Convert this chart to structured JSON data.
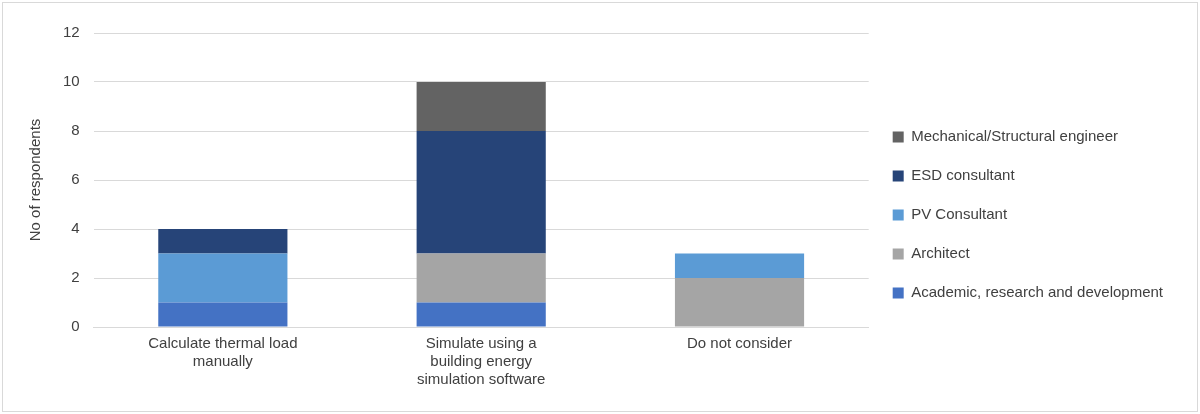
{
  "chart_data": {
    "type": "bar",
    "stacked": true,
    "ylabel": "No of respondents",
    "categories": [
      "Calculate thermal load manually",
      "Simulate using a building energy simulation software",
      "Do not consider"
    ],
    "series": [
      {
        "name": "Academic, research and development",
        "color": "#4472c4",
        "values": [
          1,
          1,
          0
        ]
      },
      {
        "name": "Architect",
        "color": "#a5a5a5",
        "values": [
          0,
          2,
          2
        ]
      },
      {
        "name": "PV Consultant",
        "color": "#5b9bd5",
        "values": [
          2,
          0,
          1
        ]
      },
      {
        "name": "ESD consultant",
        "color": "#264478",
        "values": [
          1,
          5,
          0
        ]
      },
      {
        "name": "Mechanical/Structural engineer",
        "color": "#636363",
        "values": [
          0,
          2,
          0
        ]
      }
    ],
    "ylim": [
      0,
      12
    ],
    "yticks": [
      0,
      2,
      4,
      6,
      8,
      10,
      12
    ],
    "grid": "y",
    "legend": "right"
  }
}
